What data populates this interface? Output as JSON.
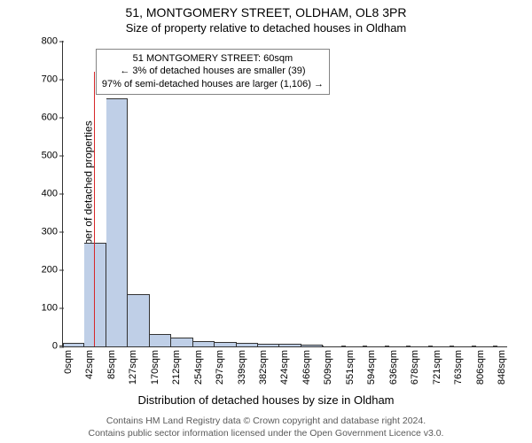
{
  "header": {
    "title": "51, MONTGOMERY STREET, OLDHAM, OL8 3PR",
    "subtitle": "Size of property relative to detached houses in Oldham"
  },
  "footer": {
    "line1": "Contains HM Land Registry data © Crown copyright and database right 2024.",
    "line2": "Contains public sector information licensed under the Open Government Licence v3.0."
  },
  "chart": {
    "type": "bar",
    "xlabel": "Distribution of detached houses by size in Oldham",
    "ylabel": "Number of detached properties",
    "xlim_sqm": [
      0,
      868
    ],
    "ylim": [
      0,
      800
    ],
    "ytick_step": 100,
    "xtick_step_sqm": 42.4,
    "xtick_count": 21,
    "xtick_unit": "sqm",
    "bar_color": "#bfcfe7",
    "bar_border": "#333333",
    "bin_width_sqm": 42.4,
    "axis_color": "#333333",
    "background_color": "#ffffff",
    "values": [
      10,
      272,
      650,
      138,
      32,
      24,
      14,
      12,
      10,
      8,
      8,
      5,
      0,
      0,
      0,
      0,
      0,
      0,
      0,
      0,
      0
    ],
    "marker": {
      "color": "#d62728",
      "x_sqm": 60,
      "height_value": 720
    },
    "annotation": {
      "border_color": "#848484",
      "lines": [
        "51 MONTGOMERY STREET: 60sqm",
        "← 3% of detached houses are smaller (39)",
        "97% of semi-detached houses are larger (1,106) →"
      ],
      "box_left_sqm": 64,
      "box_top_value": 780
    }
  }
}
